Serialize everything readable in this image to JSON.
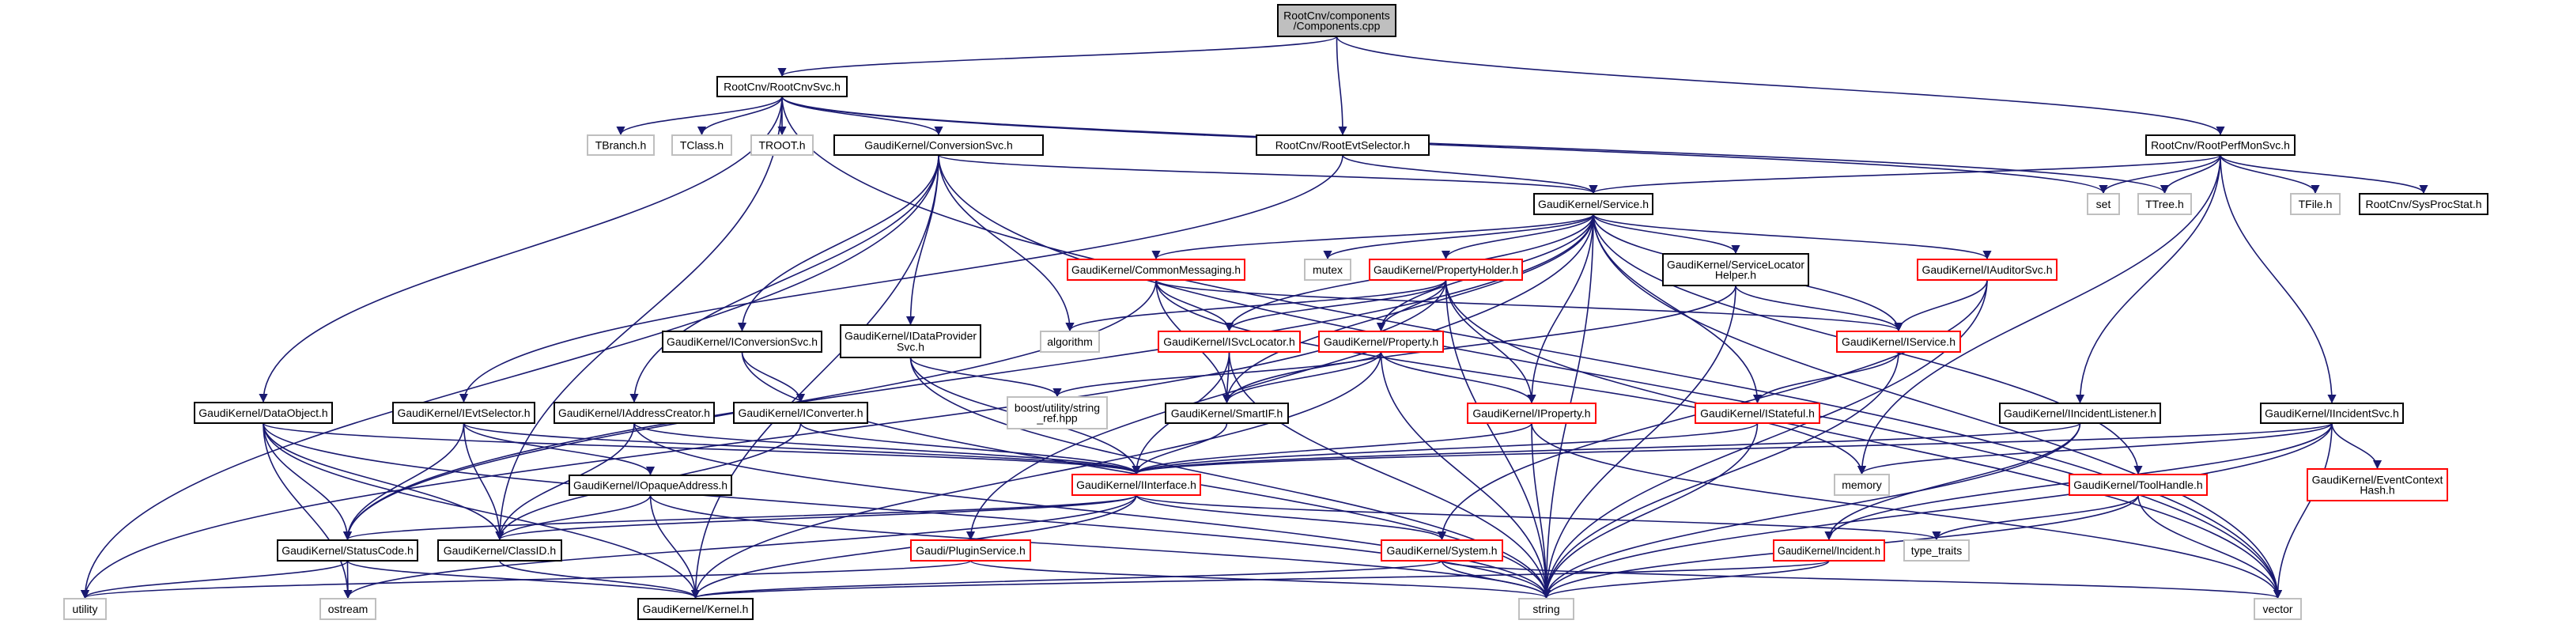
{
  "colors": {
    "edge": "#191970",
    "root_fill": "#bfbfbf",
    "incomplete_border": "#ff0000",
    "external_border": "#bfbfbf",
    "normal_border": "#000000"
  },
  "nodes": [
    {
      "id": "root",
      "style": "root",
      "label": [
        "RootCnv/components",
        "/Components.cpp"
      ]
    },
    {
      "id": "rootcnvsvc",
      "style": "normal",
      "label": [
        "RootCnv/RootCnvSvc.h"
      ]
    },
    {
      "id": "tbranch",
      "style": "ext",
      "label": [
        "TBranch.h"
      ]
    },
    {
      "id": "tclass",
      "style": "ext",
      "label": [
        "TClass.h"
      ]
    },
    {
      "id": "troot",
      "style": "ext",
      "label": [
        "TROOT.h"
      ]
    },
    {
      "id": "conversionsvc",
      "style": "normal",
      "label": [
        "GaudiKernel/ConversionSvc.h"
      ]
    },
    {
      "id": "rootevtsel",
      "style": "normal",
      "label": [
        "RootCnv/RootEvtSelector.h"
      ]
    },
    {
      "id": "rootperfmon",
      "style": "normal",
      "label": [
        "RootCnv/RootPerfMonSvc.h"
      ]
    },
    {
      "id": "set",
      "style": "ext",
      "label": [
        "set"
      ]
    },
    {
      "id": "ttree",
      "style": "ext",
      "label": [
        "TTree.h"
      ]
    },
    {
      "id": "tfile",
      "style": "ext",
      "label": [
        "TFile.h"
      ]
    },
    {
      "id": "sysprocstat",
      "style": "normal",
      "label": [
        "RootCnv/SysProcStat.h"
      ]
    },
    {
      "id": "service",
      "style": "normal",
      "label": [
        "GaudiKernel/Service.h"
      ]
    },
    {
      "id": "commonmsg",
      "style": "red",
      "label": [
        "GaudiKernel/CommonMessaging.h"
      ]
    },
    {
      "id": "mutex",
      "style": "ext",
      "label": [
        "mutex"
      ]
    },
    {
      "id": "propholder",
      "style": "red",
      "label": [
        "GaudiKernel/PropertyHolder.h"
      ]
    },
    {
      "id": "svclochelper",
      "style": "normal",
      "label": [
        "GaudiKernel/ServiceLocator",
        "Helper.h"
      ]
    },
    {
      "id": "iauditorsvc",
      "style": "red",
      "label": [
        "GaudiKernel/IAuditorSvc.h"
      ]
    },
    {
      "id": "iconversionsvc",
      "style": "normal",
      "label": [
        "GaudiKernel/IConversionSvc.h"
      ]
    },
    {
      "id": "idataprovider",
      "style": "normal",
      "label": [
        "GaudiKernel/IDataProvider",
        "Svc.h"
      ]
    },
    {
      "id": "algorithm",
      "style": "ext",
      "label": [
        "algorithm"
      ]
    },
    {
      "id": "isvclocator",
      "style": "red",
      "label": [
        "GaudiKernel/ISvcLocator.h"
      ]
    },
    {
      "id": "property",
      "style": "red",
      "label": [
        "GaudiKernel/Property.h"
      ]
    },
    {
      "id": "iservice",
      "style": "red",
      "label": [
        "GaudiKernel/IService.h"
      ]
    },
    {
      "id": "boost",
      "style": "ext",
      "label": [
        "boost/utility/string",
        "_ref.hpp"
      ]
    },
    {
      "id": "smartif",
      "style": "normal",
      "label": [
        "GaudiKernel/SmartIF.h"
      ]
    },
    {
      "id": "iproperty",
      "style": "red",
      "label": [
        "GaudiKernel/IProperty.h"
      ]
    },
    {
      "id": "istateful",
      "style": "red",
      "label": [
        "GaudiKernel/IStateful.h"
      ]
    },
    {
      "id": "iincidentlistener",
      "style": "normal",
      "label": [
        "GaudiKernel/IIncidentListener.h"
      ]
    },
    {
      "id": "iincidentsvc",
      "style": "normal",
      "label": [
        "GaudiKernel/IIncidentSvc.h"
      ]
    },
    {
      "id": "dataobject",
      "style": "normal",
      "label": [
        "GaudiKernel/DataObject.h"
      ]
    },
    {
      "id": "ievtselector",
      "style": "normal",
      "label": [
        "GaudiKernel/IEvtSelector.h"
      ]
    },
    {
      "id": "iaddresscreator",
      "style": "normal",
      "label": [
        "GaudiKernel/IAddressCreator.h"
      ]
    },
    {
      "id": "iconverter",
      "style": "normal",
      "label": [
        "GaudiKernel/IConverter.h"
      ]
    },
    {
      "id": "iopaque",
      "style": "normal",
      "label": [
        "GaudiKernel/IOpaqueAddress.h"
      ]
    },
    {
      "id": "iinterface",
      "style": "red",
      "label": [
        "GaudiKernel/IInterface.h"
      ]
    },
    {
      "id": "memory",
      "style": "ext",
      "label": [
        "memory"
      ]
    },
    {
      "id": "toolhandle",
      "style": "red",
      "label": [
        "GaudiKernel/ToolHandle.h"
      ]
    },
    {
      "id": "eventctx",
      "style": "red",
      "label": [
        "GaudiKernel/EventContext",
        "Hash.h"
      ]
    },
    {
      "id": "statuscode",
      "style": "normal",
      "label": [
        "GaudiKernel/StatusCode.h"
      ]
    },
    {
      "id": "classid",
      "style": "normal",
      "label": [
        "GaudiKernel/ClassID.h"
      ]
    },
    {
      "id": "plugin",
      "style": "red",
      "label": [
        "Gaudi/PluginService.h"
      ]
    },
    {
      "id": "system",
      "style": "red",
      "label": [
        "GaudiKernel/System.h"
      ]
    },
    {
      "id": "incident",
      "style": "red",
      "label": [
        "GaudiKernel/Incident.h"
      ]
    },
    {
      "id": "typetraits",
      "style": "ext",
      "label": [
        "type_traits"
      ]
    },
    {
      "id": "utility",
      "style": "ext",
      "label": [
        "utility"
      ]
    },
    {
      "id": "ostream",
      "style": "ext",
      "label": [
        "ostream"
      ]
    },
    {
      "id": "kernel",
      "style": "normal",
      "label": [
        "GaudiKernel/Kernel.h"
      ]
    },
    {
      "id": "string",
      "style": "ext",
      "label": [
        "string"
      ]
    },
    {
      "id": "vector",
      "style": "ext",
      "label": [
        "vector"
      ]
    }
  ],
  "edges": [
    [
      "root",
      "rootcnvsvc"
    ],
    [
      "root",
      "rootevtsel"
    ],
    [
      "root",
      "rootperfmon"
    ],
    [
      "rootcnvsvc",
      "tbranch"
    ],
    [
      "rootcnvsvc",
      "tclass"
    ],
    [
      "rootcnvsvc",
      "troot"
    ],
    [
      "rootcnvsvc",
      "conversionsvc"
    ],
    [
      "rootcnvsvc",
      "dataobject"
    ],
    [
      "rootcnvsvc",
      "classid"
    ],
    [
      "rootcnvsvc",
      "set"
    ],
    [
      "rootcnvsvc",
      "ttree"
    ],
    [
      "rootcnvsvc",
      "vector"
    ],
    [
      "conversionsvc",
      "service"
    ],
    [
      "conversionsvc",
      "iconversionsvc"
    ],
    [
      "conversionsvc",
      "idataprovider"
    ],
    [
      "conversionsvc",
      "iaddresscreator"
    ],
    [
      "conversionsvc",
      "algorithm"
    ],
    [
      "conversionsvc",
      "utility"
    ],
    [
      "conversionsvc",
      "kernel"
    ],
    [
      "conversionsvc",
      "vector"
    ],
    [
      "rootevtsel",
      "service"
    ],
    [
      "rootevtsel",
      "ievtselector"
    ],
    [
      "rootperfmon",
      "service"
    ],
    [
      "rootperfmon",
      "set"
    ],
    [
      "rootperfmon",
      "ttree"
    ],
    [
      "rootperfmon",
      "tfile"
    ],
    [
      "rootperfmon",
      "sysprocstat"
    ],
    [
      "rootperfmon",
      "iincidentlistener"
    ],
    [
      "rootperfmon",
      "iincidentsvc"
    ],
    [
      "rootperfmon",
      "memory"
    ],
    [
      "service",
      "commonmsg"
    ],
    [
      "service",
      "mutex"
    ],
    [
      "service",
      "propholder"
    ],
    [
      "service",
      "svclochelper"
    ],
    [
      "service",
      "iauditorsvc"
    ],
    [
      "service",
      "isvclocator"
    ],
    [
      "service",
      "property"
    ],
    [
      "service",
      "iproperty"
    ],
    [
      "service",
      "iservice"
    ],
    [
      "service",
      "istateful"
    ],
    [
      "service",
      "smartif"
    ],
    [
      "service",
      "string"
    ],
    [
      "service",
      "vector"
    ],
    [
      "service",
      "plugin"
    ],
    [
      "service",
      "toolhandle"
    ],
    [
      "service",
      "statuscode"
    ],
    [
      "commonmsg",
      "isvclocator"
    ],
    [
      "commonmsg",
      "smartif"
    ],
    [
      "commonmsg",
      "iservice"
    ],
    [
      "commonmsg",
      "statuscode"
    ],
    [
      "commonmsg",
      "memory"
    ],
    [
      "propholder",
      "algorithm"
    ],
    [
      "propholder",
      "isvclocator"
    ],
    [
      "propholder",
      "property"
    ],
    [
      "propholder",
      "iproperty"
    ],
    [
      "propholder",
      "string"
    ],
    [
      "propholder",
      "vector"
    ],
    [
      "propholder",
      "utility"
    ],
    [
      "svclochelper",
      "iservice"
    ],
    [
      "svclochelper",
      "smartif"
    ],
    [
      "svclochelper",
      "string"
    ],
    [
      "iauditorsvc",
      "iservice"
    ],
    [
      "iauditorsvc",
      "system"
    ],
    [
      "iauditorsvc",
      "string"
    ],
    [
      "iconversionsvc",
      "iconverter"
    ],
    [
      "iconversionsvc",
      "string"
    ],
    [
      "idataprovider",
      "boost"
    ],
    [
      "idataprovider",
      "iinterface"
    ],
    [
      "idataprovider",
      "string"
    ],
    [
      "isvclocator",
      "iinterface"
    ],
    [
      "isvclocator",
      "smartif"
    ],
    [
      "isvclocator",
      "string"
    ],
    [
      "property",
      "boost"
    ],
    [
      "property",
      "smartif"
    ],
    [
      "property",
      "iproperty"
    ],
    [
      "property",
      "string"
    ],
    [
      "property",
      "kernel"
    ],
    [
      "iservice",
      "istateful"
    ],
    [
      "iservice",
      "string"
    ],
    [
      "iconverter",
      "iinterface"
    ],
    [
      "iconverter",
      "classid"
    ],
    [
      "smartif",
      "iinterface"
    ],
    [
      "iproperty",
      "iinterface"
    ],
    [
      "iproperty",
      "string"
    ],
    [
      "iproperty",
      "vector"
    ],
    [
      "istateful",
      "iinterface"
    ],
    [
      "istateful",
      "string"
    ],
    [
      "iincidentlistener",
      "iinterface"
    ],
    [
      "iincidentlistener",
      "incident"
    ],
    [
      "iincidentlistener",
      "string"
    ],
    [
      "iincidentsvc",
      "iinterface"
    ],
    [
      "iincidentsvc",
      "memory"
    ],
    [
      "iincidentsvc",
      "incident"
    ],
    [
      "iincidentsvc",
      "eventctx"
    ],
    [
      "iincidentsvc",
      "string"
    ],
    [
      "iincidentsvc",
      "vector"
    ],
    [
      "dataobject",
      "statuscode"
    ],
    [
      "dataobject",
      "classid"
    ],
    [
      "dataobject",
      "iinterface"
    ],
    [
      "dataobject",
      "ostream"
    ],
    [
      "dataobject",
      "string"
    ],
    [
      "dataobject",
      "kernel"
    ],
    [
      "ievtselector",
      "statuscode"
    ],
    [
      "ievtselector",
      "iopaque"
    ],
    [
      "ievtselector",
      "iinterface"
    ],
    [
      "ievtselector",
      "classid"
    ],
    [
      "iaddresscreator",
      "classid"
    ],
    [
      "iaddresscreator",
      "iinterface"
    ],
    [
      "iaddresscreator",
      "string"
    ],
    [
      "iopaque",
      "classid"
    ],
    [
      "iopaque",
      "kernel"
    ],
    [
      "iopaque",
      "string"
    ],
    [
      "iinterface",
      "statuscode"
    ],
    [
      "iinterface",
      "classid"
    ],
    [
      "iinterface",
      "system"
    ],
    [
      "iinterface",
      "kernel"
    ],
    [
      "iinterface",
      "typetraits"
    ],
    [
      "iinterface",
      "ostream"
    ],
    [
      "toolhandle",
      "typetraits"
    ],
    [
      "toolhandle",
      "vector"
    ],
    [
      "toolhandle",
      "string"
    ],
    [
      "statuscode",
      "utility"
    ],
    [
      "statuscode",
      "ostream"
    ],
    [
      "statuscode",
      "kernel"
    ],
    [
      "classid",
      "kernel"
    ],
    [
      "plugin",
      "string"
    ],
    [
      "plugin",
      "utility"
    ],
    [
      "system",
      "kernel"
    ],
    [
      "system",
      "string"
    ],
    [
      "system",
      "vector"
    ],
    [
      "incident",
      "string"
    ],
    [
      "incident",
      "kernel"
    ]
  ]
}
